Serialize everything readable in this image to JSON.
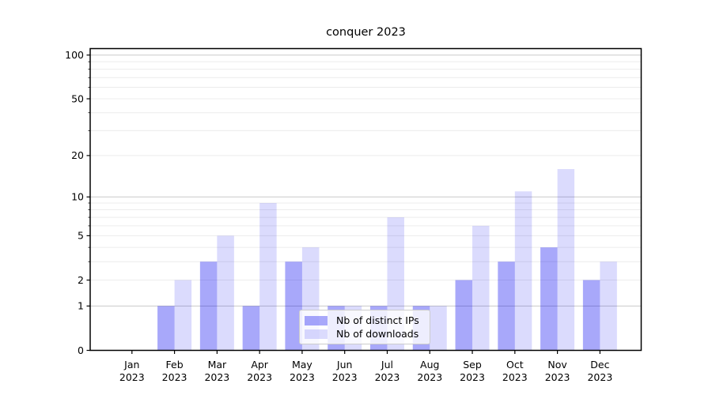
{
  "chart_data": {
    "type": "bar",
    "title": "conquer 2023",
    "categories": [
      "Jan",
      "Feb",
      "Mar",
      "Apr",
      "May",
      "Jun",
      "Jul",
      "Aug",
      "Sep",
      "Oct",
      "Nov",
      "Dec"
    ],
    "category_year": "2023",
    "series": [
      {
        "name": "Nb of distinct IPs",
        "color": "rgba(0,0,240,0.34)",
        "values": [
          0,
          1,
          3,
          1,
          3,
          1,
          1,
          1,
          2,
          3,
          4,
          2
        ]
      },
      {
        "name": "Nb of downloads",
        "color": "rgba(0,0,240,0.14)",
        "values": [
          0,
          2,
          5,
          9,
          4,
          1,
          7,
          1,
          6,
          11,
          16,
          3
        ]
      }
    ],
    "yscale": "log1p",
    "ylim": [
      0,
      111
    ],
    "yticks": [
      0,
      1,
      2,
      5,
      10,
      20,
      50,
      100
    ],
    "grid": {
      "major": [
        1,
        10,
        100
      ],
      "minor": [
        2,
        3,
        4,
        5,
        6,
        7,
        8,
        9,
        20,
        30,
        40,
        50,
        60,
        70,
        80,
        90
      ],
      "major_color": "#c9c9c9",
      "minor_color": "#ececec"
    },
    "axis_color": "#000000",
    "legend_position": "lower center"
  }
}
